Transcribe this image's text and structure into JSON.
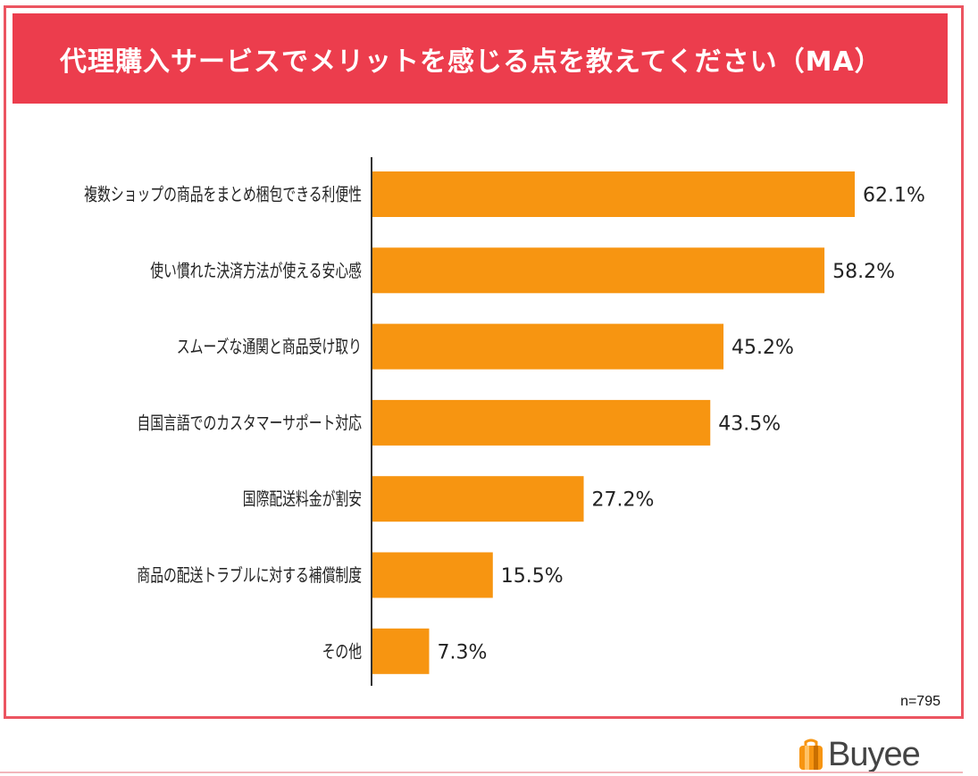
{
  "header": {
    "title": "代理購入サービスでメリットを感じる点を教えてください（MA）"
  },
  "sample_size": "n=795",
  "brand": {
    "name": "Buyee",
    "logo_icon": "buyee-bag-icon"
  },
  "colors": {
    "bar": "#f79511",
    "title_bg": "#ec3d4d",
    "frame": "#ec5561"
  },
  "chart_data": {
    "type": "bar",
    "orientation": "horizontal",
    "title": "代理購入サービスでメリットを感じる点を教えてください（MA）",
    "categories": [
      "複数ショップの商品をまとめ梱包できる利便性",
      "使い慣れた決済方法が使える安心感",
      "スムーズな通関と商品受け取り",
      "自国言語でのカスタマーサポート対応",
      "国際配送料金が割安",
      "商品の配送トラブルに対する補償制度",
      "その他"
    ],
    "values": [
      62.1,
      58.2,
      45.2,
      43.5,
      27.2,
      15.5,
      7.3
    ],
    "value_labels": [
      "62.1%",
      "58.2%",
      "45.2%",
      "43.5%",
      "27.2%",
      "15.5%",
      "7.3%"
    ],
    "unit": "%",
    "xlim": [
      0,
      62.1
    ],
    "grid": false,
    "legend": "none"
  }
}
